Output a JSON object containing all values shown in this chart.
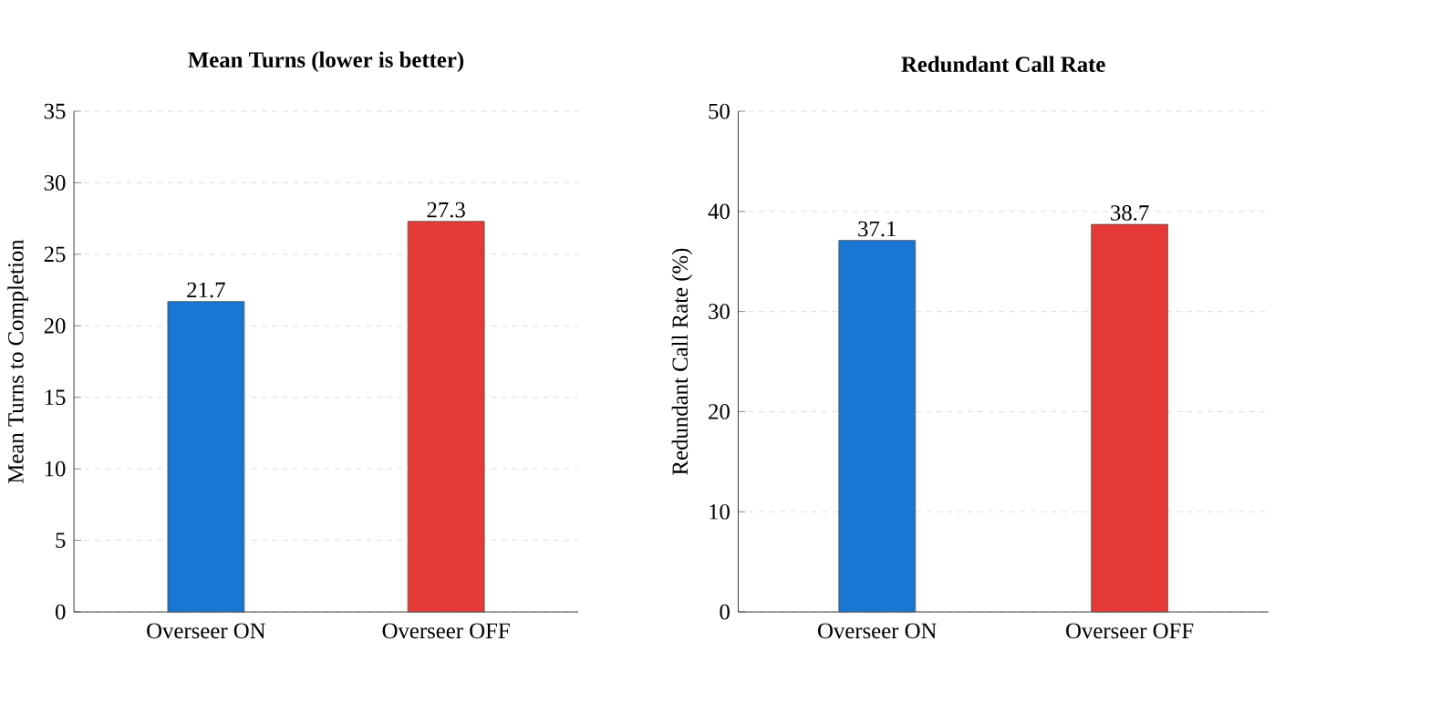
{
  "chart_data": [
    {
      "type": "bar",
      "title": "Mean Turns (lower is better)",
      "ylabel": "Mean Turns to Completion",
      "categories": [
        "Overseer ON",
        "Overseer OFF"
      ],
      "values": [
        21.7,
        27.3
      ],
      "colors": [
        "#1976d2",
        "#e53935"
      ],
      "ylim": [
        0,
        35
      ],
      "yticks": [
        0,
        5,
        10,
        15,
        20,
        25,
        30,
        35
      ],
      "grid": "y",
      "data_labels": true
    },
    {
      "type": "bar",
      "title": "Redundant Call Rate",
      "ylabel": "Redundant Call Rate (%)",
      "categories": [
        "Overseer ON",
        "Overseer OFF"
      ],
      "values": [
        37.1,
        38.7
      ],
      "colors": [
        "#1976d2",
        "#e53935"
      ],
      "ylim": [
        0,
        50
      ],
      "yticks": [
        0,
        10,
        20,
        30,
        40,
        50
      ],
      "grid": "y",
      "data_labels": true
    }
  ]
}
